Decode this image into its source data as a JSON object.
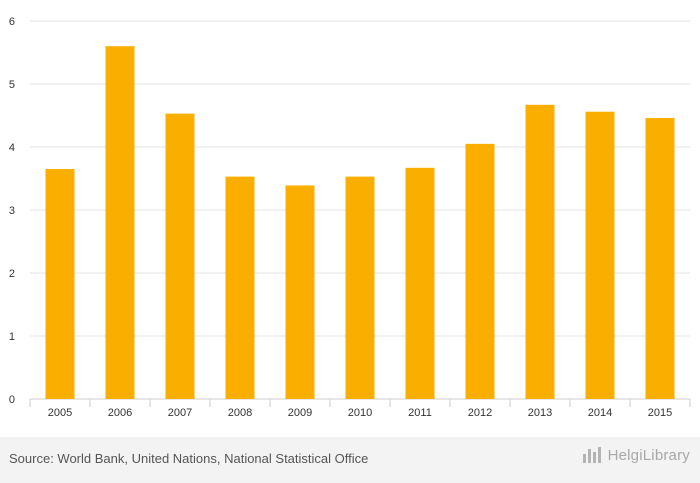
{
  "colors": {
    "bar": "#f9ae00",
    "grid": "#e6e6e6",
    "axis": "#cccccc",
    "footer_bg": "#f3f3f3"
  },
  "chart_data": {
    "type": "bar",
    "title": "",
    "xlabel": "",
    "ylabel": "",
    "categories": [
      "2005",
      "2006",
      "2007",
      "2008",
      "2009",
      "2010",
      "2011",
      "2012",
      "2013",
      "2014",
      "2015"
    ],
    "values": [
      3.65,
      5.6,
      4.53,
      3.53,
      3.39,
      3.53,
      3.67,
      4.05,
      4.67,
      4.56,
      4.46
    ],
    "ylim": [
      0,
      6
    ],
    "yticks": [
      0,
      1,
      2,
      3,
      4,
      5,
      6
    ],
    "grid": true
  },
  "footer": {
    "source": "Source: World Bank, United Nations, National Statistical Office",
    "brand": "HelgiLibrary",
    "brand_icon": "bar-chart-logo-icon"
  }
}
